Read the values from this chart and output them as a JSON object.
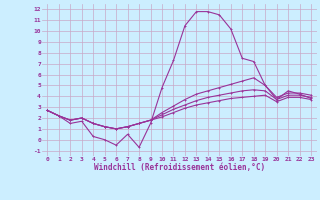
{
  "xlabel": "Windchill (Refroidissement éolien,°C)",
  "bg_color": "#cceeff",
  "grid_color": "#c8a8c8",
  "line_color": "#993399",
  "xlim": [
    -0.5,
    23.5
  ],
  "ylim": [
    -1.5,
    12.5
  ],
  "xticks": [
    0,
    1,
    2,
    3,
    4,
    5,
    6,
    7,
    8,
    9,
    10,
    11,
    12,
    13,
    14,
    15,
    16,
    17,
    18,
    19,
    20,
    21,
    22,
    23
  ],
  "yticks": [
    -1,
    0,
    1,
    2,
    3,
    4,
    5,
    6,
    7,
    8,
    9,
    10,
    11,
    12
  ],
  "line1_x": [
    0,
    1,
    2,
    3,
    4,
    5,
    6,
    7,
    8,
    9,
    10,
    11,
    12,
    13,
    14,
    15,
    16,
    17,
    18,
    19,
    20,
    21,
    22,
    23
  ],
  "line1_y": [
    2.7,
    2.2,
    1.5,
    1.7,
    0.3,
    0.0,
    -0.5,
    0.5,
    -0.7,
    1.5,
    4.8,
    7.3,
    10.5,
    11.8,
    11.8,
    11.5,
    10.2,
    7.5,
    7.2,
    5.0,
    3.7,
    4.5,
    4.2,
    3.8
  ],
  "line2_x": [
    0,
    1,
    2,
    3,
    4,
    5,
    6,
    7,
    8,
    9,
    10,
    11,
    12,
    13,
    14,
    15,
    16,
    17,
    18,
    19,
    20,
    21,
    22,
    23
  ],
  "line2_y": [
    2.7,
    2.2,
    1.8,
    2.0,
    1.5,
    1.2,
    1.0,
    1.2,
    1.5,
    1.8,
    2.5,
    3.1,
    3.7,
    4.2,
    4.5,
    4.8,
    5.1,
    5.4,
    5.7,
    5.0,
    3.9,
    4.3,
    4.3,
    4.1
  ],
  "line3_x": [
    0,
    1,
    2,
    3,
    4,
    5,
    6,
    7,
    8,
    9,
    10,
    11,
    12,
    13,
    14,
    15,
    16,
    17,
    18,
    19,
    20,
    21,
    22,
    23
  ],
  "line3_y": [
    2.7,
    2.2,
    1.8,
    2.0,
    1.5,
    1.2,
    1.0,
    1.2,
    1.5,
    1.8,
    2.3,
    2.8,
    3.2,
    3.6,
    3.9,
    4.1,
    4.3,
    4.5,
    4.6,
    4.5,
    3.7,
    4.1,
    4.1,
    3.9
  ],
  "line4_x": [
    0,
    1,
    2,
    3,
    4,
    5,
    6,
    7,
    8,
    9,
    10,
    11,
    12,
    13,
    14,
    15,
    16,
    17,
    18,
    19,
    20,
    21,
    22,
    23
  ],
  "line4_y": [
    2.7,
    2.2,
    1.8,
    2.0,
    1.5,
    1.2,
    1.0,
    1.2,
    1.5,
    1.8,
    2.1,
    2.5,
    2.9,
    3.2,
    3.4,
    3.6,
    3.8,
    3.9,
    4.0,
    4.1,
    3.5,
    3.9,
    3.9,
    3.7
  ]
}
